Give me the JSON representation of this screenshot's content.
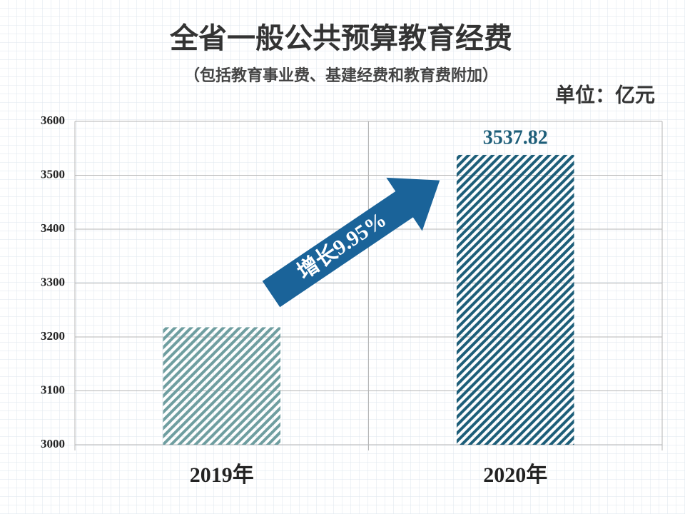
{
  "chart_data": {
    "type": "bar",
    "title": "全省一般公共预算教育经费",
    "subtitle": "（包括教育事业费、基建经费和教育费附加）",
    "unit": "单位：亿元",
    "annotation": "增长9.95%",
    "categories": [
      "2019年",
      "2020年"
    ],
    "values": [
      3218,
      3537.82
    ],
    "value_labels": [
      null,
      "3537.82"
    ],
    "colors": [
      "#6f9ea0",
      "#1d5e79"
    ],
    "ylim": [
      3000,
      3600
    ],
    "yticks": [
      3000,
      3100,
      3200,
      3300,
      3400,
      3500,
      3600
    ],
    "grid": true
  }
}
